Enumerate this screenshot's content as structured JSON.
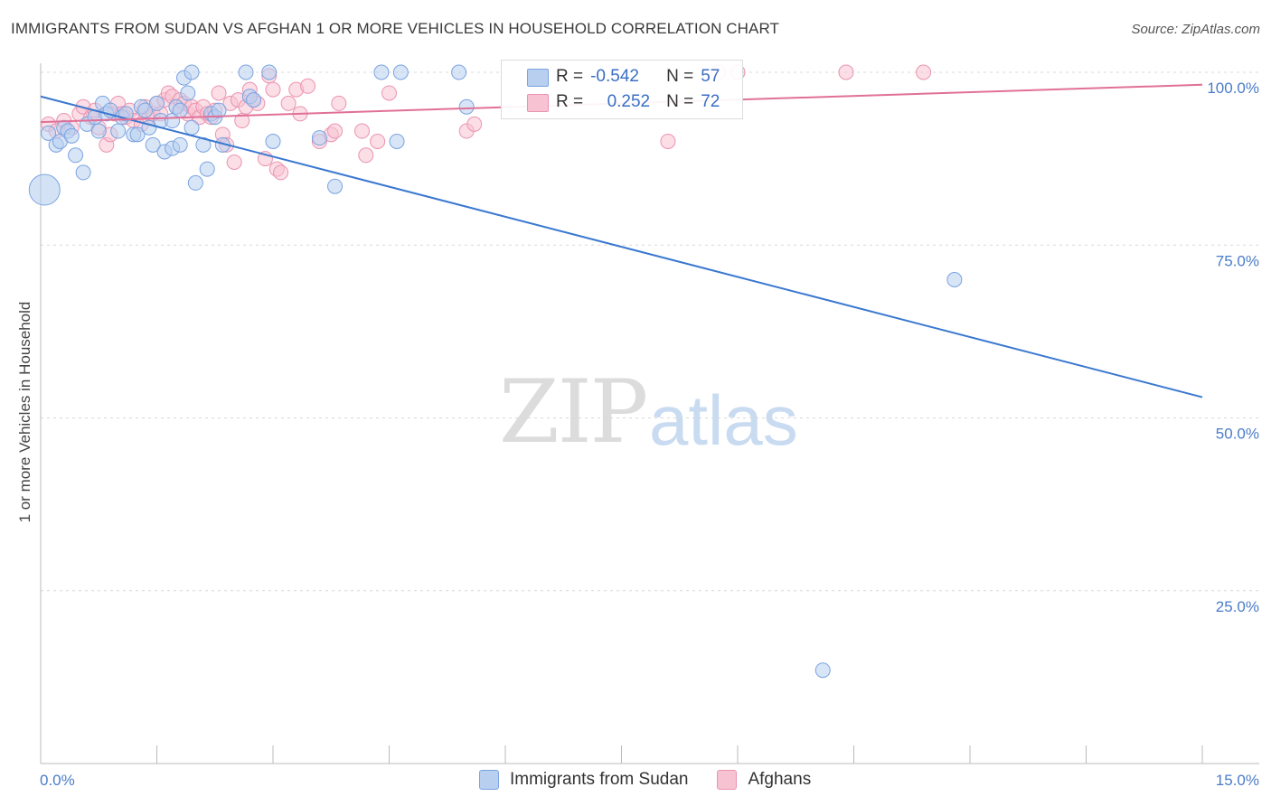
{
  "title": "IMMIGRANTS FROM SUDAN VS AFGHAN 1 OR MORE VEHICLES IN HOUSEHOLD CORRELATION CHART",
  "source": "Source: ZipAtlas.com",
  "watermark": {
    "zip": "ZIP",
    "atlas": "atlas"
  },
  "legend_top": {
    "rows": [
      {
        "r_label": "R =",
        "r_value": "-0.542",
        "n_label": "N =",
        "n_value": "57"
      },
      {
        "r_label": "R =",
        "r_value": "0.252",
        "n_label": "N =",
        "n_value": "72"
      }
    ]
  },
  "legend_bottom": [
    "Immigrants from Sudan",
    "Afghans"
  ],
  "colors": {
    "sudan_fill": "#b8cff0",
    "sudan_stroke": "#7aa3e0",
    "sudan_line": "#3a78d0",
    "afghan_fill": "#f7c2d2",
    "afghan_stroke": "#eb93b0",
    "afghan_line": "#e07098",
    "tick_text": "#4a7cc9"
  },
  "chart_data": {
    "type": "scatter",
    "title": "IMMIGRANTS FROM SUDAN VS AFGHAN 1 OR MORE VEHICLES IN HOUSEHOLD CORRELATION CHART",
    "xlabel": "",
    "ylabel": "1 or more Vehicles in Household",
    "xlim": [
      0,
      15
    ],
    "ylim": [
      0,
      102
    ],
    "x_tick_labels": [
      "0.0%",
      "15.0%"
    ],
    "y_tick_labels": [
      "100.0%",
      "75.0%",
      "50.0%",
      "25.0%"
    ],
    "y_ticks": [
      100,
      75,
      50,
      25
    ],
    "grid": true,
    "series": [
      {
        "name": "Immigrants from Sudan",
        "trend": [
          [
            0,
            96.5
          ],
          [
            15,
            53
          ]
        ],
        "points": [
          [
            0.1,
            91.2
          ],
          [
            0.2,
            89.5
          ],
          [
            0.25,
            90
          ],
          [
            0.3,
            92
          ],
          [
            0.35,
            91.5
          ],
          [
            0.4,
            90.8
          ],
          [
            0.45,
            88
          ],
          [
            0.55,
            85.5
          ],
          [
            0.6,
            92.5
          ],
          [
            0.7,
            93.5
          ],
          [
            0.75,
            91.5
          ],
          [
            0.8,
            95.5
          ],
          [
            0.85,
            94
          ],
          [
            0.9,
            94.5
          ],
          [
            1.0,
            91.5
          ],
          [
            1.05,
            93.5
          ],
          [
            1.1,
            94
          ],
          [
            1.2,
            91
          ],
          [
            1.25,
            91
          ],
          [
            1.3,
            95
          ],
          [
            1.35,
            94.5
          ],
          [
            1.4,
            92
          ],
          [
            1.5,
            95.5
          ],
          [
            1.55,
            93
          ],
          [
            1.45,
            89.5
          ],
          [
            1.6,
            88.5
          ],
          [
            1.7,
            93
          ],
          [
            1.75,
            95
          ],
          [
            1.8,
            94.5
          ],
          [
            1.7,
            89
          ],
          [
            1.8,
            89.5
          ],
          [
            1.85,
            99.2
          ],
          [
            1.9,
            97
          ],
          [
            1.95,
            92
          ],
          [
            2.0,
            84
          ],
          [
            2.1,
            89.5
          ],
          [
            2.15,
            86
          ],
          [
            2.2,
            94
          ],
          [
            2.25,
            93.5
          ],
          [
            2.3,
            94.5
          ],
          [
            2.35,
            89.5
          ],
          [
            1.95,
            100
          ],
          [
            2.65,
            100
          ],
          [
            2.7,
            96.5
          ],
          [
            2.75,
            96
          ],
          [
            2.95,
            100
          ],
          [
            3.0,
            90
          ],
          [
            3.6,
            90.5
          ],
          [
            3.8,
            83.5
          ],
          [
            4.4,
            100
          ],
          [
            4.6,
            90
          ],
          [
            4.65,
            100
          ],
          [
            5.4,
            100
          ],
          [
            5.5,
            95
          ],
          [
            11.8,
            70
          ],
          [
            10.1,
            13.5
          ],
          [
            0.05,
            83
          ]
        ],
        "sizes": {
          "[0.05,83]": "large"
        }
      },
      {
        "name": "Afghans",
        "trend": [
          [
            0,
            92.8
          ],
          [
            15,
            98.2
          ]
        ],
        "points": [
          [
            0.1,
            92.5
          ],
          [
            0.2,
            91.5
          ],
          [
            0.3,
            93
          ],
          [
            0.4,
            92
          ],
          [
            0.5,
            94
          ],
          [
            0.55,
            95
          ],
          [
            0.65,
            93.5
          ],
          [
            0.7,
            94.5
          ],
          [
            0.75,
            92
          ],
          [
            0.85,
            89.5
          ],
          [
            0.9,
            91
          ],
          [
            0.95,
            94
          ],
          [
            1.0,
            95.5
          ],
          [
            1.05,
            94
          ],
          [
            1.1,
            93.5
          ],
          [
            1.15,
            94.5
          ],
          [
            1.2,
            93
          ],
          [
            1.3,
            92.5
          ],
          [
            1.35,
            95
          ],
          [
            1.4,
            93.5
          ],
          [
            1.45,
            94
          ],
          [
            1.5,
            95.5
          ],
          [
            1.55,
            94
          ],
          [
            1.6,
            96
          ],
          [
            1.65,
            97
          ],
          [
            1.7,
            96.5
          ],
          [
            1.75,
            95
          ],
          [
            1.8,
            96
          ],
          [
            1.85,
            95.5
          ],
          [
            1.9,
            94
          ],
          [
            1.95,
            95
          ],
          [
            2.0,
            94.5
          ],
          [
            2.05,
            93.5
          ],
          [
            2.1,
            95
          ],
          [
            2.15,
            94
          ],
          [
            2.2,
            93.5
          ],
          [
            2.25,
            94.5
          ],
          [
            2.3,
            97
          ],
          [
            2.35,
            91
          ],
          [
            2.4,
            89.5
          ],
          [
            2.45,
            95.5
          ],
          [
            2.5,
            87
          ],
          [
            2.55,
            96
          ],
          [
            2.6,
            93
          ],
          [
            2.65,
            95
          ],
          [
            2.7,
            97.5
          ],
          [
            2.75,
            96
          ],
          [
            2.8,
            95.5
          ],
          [
            2.9,
            87.5
          ],
          [
            2.95,
            99.5
          ],
          [
            3.0,
            97.5
          ],
          [
            3.05,
            86
          ],
          [
            3.1,
            85.5
          ],
          [
            3.2,
            95.5
          ],
          [
            3.3,
            97.5
          ],
          [
            3.35,
            94
          ],
          [
            3.45,
            98
          ],
          [
            3.6,
            90
          ],
          [
            3.75,
            91
          ],
          [
            3.8,
            91.5
          ],
          [
            3.85,
            95.5
          ],
          [
            4.15,
            91.5
          ],
          [
            4.2,
            88
          ],
          [
            4.35,
            90
          ],
          [
            4.5,
            97
          ],
          [
            5.5,
            91.5
          ],
          [
            5.6,
            92.5
          ],
          [
            8.75,
            100
          ],
          [
            8.1,
            90
          ],
          [
            10.4,
            100
          ],
          [
            11.4,
            100
          ],
          [
            9.0,
            100
          ]
        ]
      }
    ]
  }
}
